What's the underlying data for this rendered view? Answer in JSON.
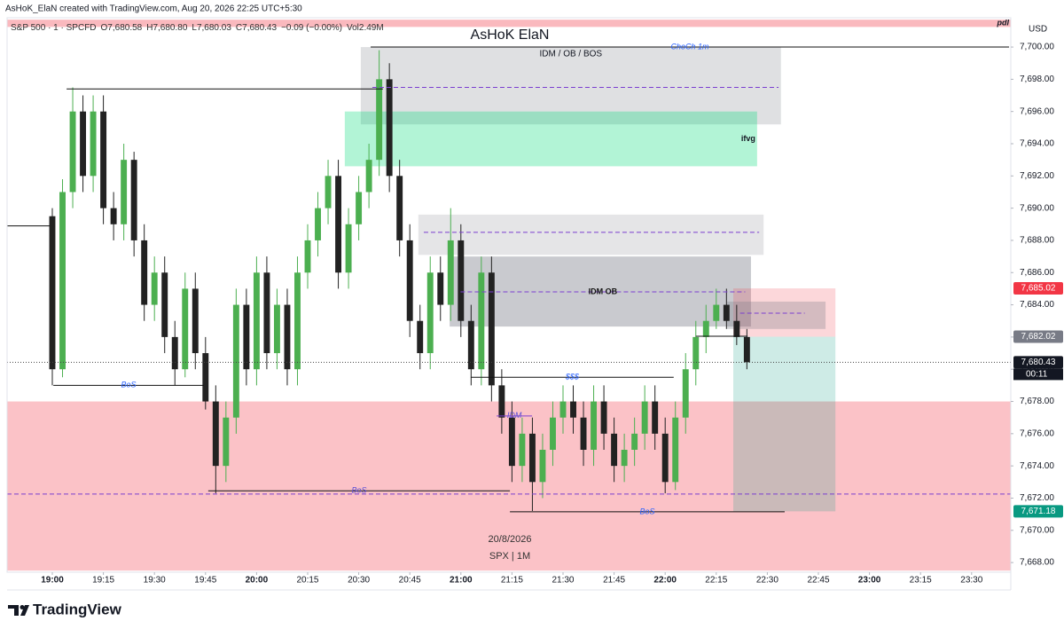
{
  "header": {
    "credit": "AsHoK_ElaN created with TradingView.com, Aug 20, 2026 22:25 UTC+5:30",
    "legend": [
      "S&P 500 · 1 · SPCFD",
      "O7,680.58",
      "H7,680.80",
      "L7,680.03",
      "C7,680.43",
      "−0.09 (−0.00%)",
      "Vol2.49M"
    ],
    "currency": "USD"
  },
  "chart_data": {
    "type": "candlestick",
    "title": "AsHoK ElaN",
    "watermark": [
      "20/8/2026",
      "SPX | 1M"
    ],
    "up_color": "#4caf50",
    "down_color": "#222222",
    "x": [
      1140,
      1143,
      1146,
      1149,
      1152,
      1155,
      1158,
      1161,
      1164,
      1167,
      1170,
      1173,
      1176,
      1179,
      1182,
      1185,
      1188,
      1191,
      1194,
      1197,
      1200,
      1203,
      1206,
      1209,
      1212,
      1215,
      1218,
      1221,
      1224,
      1227,
      1230,
      1233,
      1236,
      1239,
      1242,
      1245,
      1248,
      1251,
      1254,
      1257,
      1260,
      1263,
      1266,
      1269,
      1272,
      1275,
      1278,
      1281,
      1284,
      1287,
      1290,
      1293,
      1296,
      1299,
      1302,
      1305,
      1308,
      1311,
      1314,
      1317,
      1320,
      1323,
      1326,
      1329,
      1332,
      1335,
      1338,
      1341,
      1344
    ],
    "open": [
      7689.5,
      7680,
      7691,
      7696,
      7692,
      7696,
      7690,
      7689,
      7693,
      7688,
      7684,
      7686,
      7682,
      7680,
      7685,
      7681,
      7678,
      7674,
      7677,
      7684,
      7680,
      7686,
      7681,
      7684,
      7680,
      7686,
      7688,
      7690,
      7692,
      7686,
      7689,
      7691,
      7693,
      7698,
      7692,
      7688,
      7683,
      7681,
      7686,
      7684,
      7688,
      7683,
      7680,
      7686,
      7679,
      7677,
      7674,
      7676,
      7673,
      7675,
      7677,
      7678,
      7677,
      7675,
      7678,
      7676,
      7674,
      7675,
      7676,
      7678,
      7676,
      7673,
      7677,
      7680,
      7682,
      7683,
      7684,
      7683,
      7682
    ],
    "high": [
      7690,
      7691.8,
      7697.5,
      7697,
      7697,
      7697,
      7691,
      7694,
      7693.5,
      7689,
      7687,
      7687,
      7683,
      7686,
      7686,
      7682,
      7679,
      7678,
      7685,
      7685,
      7687,
      7687,
      7685,
      7685,
      7687,
      7689,
      7691,
      7693,
      7693,
      7690,
      7692,
      7694,
      7699.8,
      7699,
      7693,
      7689,
      7684,
      7687,
      7687,
      7690,
      7689,
      7684,
      7687,
      7687,
      7680,
      7678,
      7677,
      7677,
      7676,
      7678,
      7679,
      7679,
      7678,
      7679,
      7679,
      7677,
      7676,
      7677,
      7679,
      7679,
      7677,
      7678,
      7681,
      7683,
      7684,
      7685,
      7685,
      7684,
      7682.5
    ],
    "low": [
      7679,
      7679.5,
      7690,
      7691,
      7691,
      7689,
      7688,
      7688,
      7687,
      7683,
      7683,
      7681,
      7679,
      7679.5,
      7680,
      7677.5,
      7672.3,
      7673,
      7676,
      7679,
      7679,
      7680,
      7680,
      7679,
      7679,
      7685,
      7687,
      7689,
      7685,
      7685,
      7688,
      7690,
      7692,
      7691,
      7687,
      7682,
      7680,
      7680,
      7683,
      7683,
      7682,
      7679,
      7679,
      7678,
      7676,
      7673,
      7673,
      7671.2,
      7672,
      7674,
      7676,
      7676,
      7674,
      7674,
      7675,
      7673,
      7673,
      7674,
      7675,
      7675,
      7672.3,
      7672.5,
      7676,
      7679,
      7681,
      7682.5,
      7682.5,
      7681.5,
      7680
    ],
    "close": [
      7680,
      7691,
      7696,
      7692,
      7696,
      7690,
      7689,
      7693,
      7688,
      7684,
      7686,
      7682,
      7680,
      7685,
      7681,
      7678,
      7674,
      7677,
      7684,
      7680,
      7686,
      7681,
      7684,
      7680,
      7686,
      7688,
      7690,
      7692,
      7686,
      7689,
      7691,
      7693,
      7698,
      7692,
      7688,
      7683,
      7681,
      7686,
      7684,
      7688,
      7683,
      7680,
      7686,
      7679,
      7677,
      7674,
      7676,
      7673,
      7675,
      7677,
      7678,
      7677,
      7675,
      7678,
      7676,
      7674,
      7675,
      7676,
      7678,
      7676,
      7673,
      7677,
      7680,
      7682,
      7683,
      7684,
      7683,
      7682,
      7680.43
    ],
    "xlim": [
      1126.72,
      1421.51
    ],
    "ylim": [
      7667.4,
      7701.82
    ],
    "xticks": [
      {
        "value": 1140,
        "label": "19:00"
      },
      {
        "value": 1155,
        "label": "19:15"
      },
      {
        "value": 1170,
        "label": "19:30"
      },
      {
        "value": 1185,
        "label": "19:45"
      },
      {
        "value": 1200,
        "label": "20:00"
      },
      {
        "value": 1215,
        "label": "20:15"
      },
      {
        "value": 1230,
        "label": "20:30"
      },
      {
        "value": 1245,
        "label": "20:45"
      },
      {
        "value": 1260,
        "label": "21:00"
      },
      {
        "value": 1275,
        "label": "21:15"
      },
      {
        "value": 1290,
        "label": "21:30"
      },
      {
        "value": 1305,
        "label": "21:45"
      },
      {
        "value": 1320,
        "label": "22:00"
      },
      {
        "value": 1335,
        "label": "22:15"
      },
      {
        "value": 1350,
        "label": "22:30"
      },
      {
        "value": 1365,
        "label": "22:45"
      },
      {
        "value": 1380,
        "label": "23:00"
      },
      {
        "value": 1395,
        "label": "23:15"
      },
      {
        "value": 1410,
        "label": "23:30"
      }
    ],
    "yticks": [
      {
        "value": 7668,
        "label": "7,668.00"
      },
      {
        "value": 7670,
        "label": "7,670.00"
      },
      {
        "value": 7672,
        "label": "7,672.00"
      },
      {
        "value": 7674,
        "label": "7,674.00"
      },
      {
        "value": 7676,
        "label": "7,676.00"
      },
      {
        "value": 7678,
        "label": "7,678.00"
      },
      {
        "value": 7680,
        "label": "7,680.00"
      },
      {
        "value": 7682,
        "label": "7,682.00"
      },
      {
        "value": 7684,
        "label": "7,684.00"
      },
      {
        "value": 7686,
        "label": "7,686.00"
      },
      {
        "value": 7688,
        "label": "7,688.00"
      },
      {
        "value": 7690,
        "label": "7,690.00"
      },
      {
        "value": 7692,
        "label": "7,692.00"
      },
      {
        "value": 7694,
        "label": "7,694.00"
      },
      {
        "value": 7696,
        "label": "7,696.00"
      },
      {
        "value": 7698,
        "label": "7,698.00"
      },
      {
        "value": 7700,
        "label": "7,700.00"
      }
    ],
    "zones": [
      {
        "x1": 1126.72,
        "x2": 1421.51,
        "y1": 7701.7,
        "y2": 7701.25,
        "color": "rgba(242,54,69,0.35)",
        "label": "pdl",
        "label_align": "right"
      },
      {
        "x1": 1230.6,
        "x2": 1354,
        "y1": 7700,
        "y2": 7695.2,
        "color": "rgba(150,152,160,0.3)",
        "label": "IDM / OB / BOS",
        "label_align": "top"
      },
      {
        "x1": 1225.9,
        "x2": 1347,
        "y1": 7696,
        "y2": 7692.6,
        "color": "rgba(0,220,120,0.3)",
        "label": "ifvg",
        "label_align": "right"
      },
      {
        "x1": 1247.5,
        "x2": 1348.9,
        "y1": 7689.6,
        "y2": 7687.1,
        "color": "rgba(150,152,160,0.25)"
      },
      {
        "x1": 1256.7,
        "x2": 1345.2,
        "y1": 7687,
        "y2": 7682.65,
        "color": "rgba(120,123,134,0.4)"
      },
      {
        "x1": 1126.72,
        "x2": 1421.51,
        "y1": 7678,
        "y2": 7667.5,
        "color": "rgba(242,54,69,0.3)"
      },
      {
        "x1": 1340,
        "x2": 1370,
        "y1": 7685.02,
        "y2": 7682.02,
        "color": "rgba(242,54,69,0.2)"
      },
      {
        "x1": 1340,
        "x2": 1370,
        "y1": 7682.02,
        "y2": 7671.18,
        "color": "rgba(8,153,129,0.2)"
      },
      {
        "x1": 1338.2,
        "x2": 1367.1,
        "y1": 7684.2,
        "y2": 7682.5,
        "color": "rgba(120,123,134,0.3)"
      }
    ],
    "levels": [
      {
        "value": 7700,
        "x1": 1233.5,
        "x2": 1421,
        "color": "#111111",
        "style": "solid",
        "label": "ChoCh 1m",
        "label_color": "#2962ff"
      },
      {
        "value": 7697.4,
        "x1": 1144.2,
        "x2": 1237.1,
        "color": "#111111",
        "style": "solid"
      },
      {
        "value": 7697.5,
        "x1": 1234,
        "x2": 1353.3,
        "color": "#7b3fd0",
        "style": "dashed"
      },
      {
        "value": 7688.9,
        "x1": 1126.72,
        "x2": 1139.2,
        "color": "#111111",
        "style": "solid"
      },
      {
        "value": 7688.5,
        "x1": 1249.1,
        "x2": 1347.6,
        "color": "#7b3fd0",
        "style": "dashed"
      },
      {
        "value": 7684.8,
        "x1": 1259.9,
        "x2": 1343.5,
        "color": "#7b3fd0",
        "style": "dashed",
        "label": "IDM OB",
        "label_color": "#111111"
      },
      {
        "value": 7679,
        "x1": 1140.3,
        "x2": 1184.5,
        "color": "#111111",
        "style": "solid",
        "label": "BoS",
        "label_color": "#2962ff"
      },
      {
        "value": 7679.5,
        "x1": 1262.9,
        "x2": 1322.5,
        "color": "#111111",
        "style": "solid",
        "label": "$$$",
        "label_color": "#2962ff"
      },
      {
        "value": 7677.1,
        "x1": 1270.5,
        "x2": 1280.9,
        "color": "#7b3fd0",
        "style": "solid",
        "label": "IDM",
        "label_color": "#5b4fd6"
      },
      {
        "value": 7672.45,
        "x1": 1185.8,
        "x2": 1274.4,
        "color": "#111111",
        "style": "solid",
        "label": "BoS",
        "label_color": "#5b4fd6"
      },
      {
        "value": 7672.25,
        "x1": 1126.72,
        "x2": 1421.51,
        "color": "#7b3fd0",
        "style": "dashed"
      },
      {
        "value": 7671.15,
        "x1": 1274.4,
        "x2": 1355.1,
        "color": "#111111",
        "style": "solid",
        "label": "BoS",
        "label_color": "#2962ff"
      },
      {
        "value": 7682.05,
        "x1": 1329,
        "x2": 1344.2,
        "color": "#111111",
        "style": "solid"
      },
      {
        "value": 7683.48,
        "x1": 1342,
        "x2": 1361,
        "color": "#7b3fd0",
        "style": "dashed"
      },
      {
        "value": 7680.43,
        "x1": 1126.72,
        "x2": 1421.51,
        "color": "#444444",
        "style": "dotted"
      }
    ],
    "price_labels": [
      {
        "value": 7685.02,
        "label": "7,685.02",
        "color": "#f23645"
      },
      {
        "value": 7682.02,
        "label": "7,682.02",
        "color": "#787b86"
      },
      {
        "value": 7680.43,
        "label": "7,680.43",
        "color": "#131722",
        "sublabel": "00:11"
      },
      {
        "value": 7671.18,
        "label": "7,671.18",
        "color": "#089981"
      }
    ]
  },
  "footer": {
    "brand": "TradingView"
  }
}
